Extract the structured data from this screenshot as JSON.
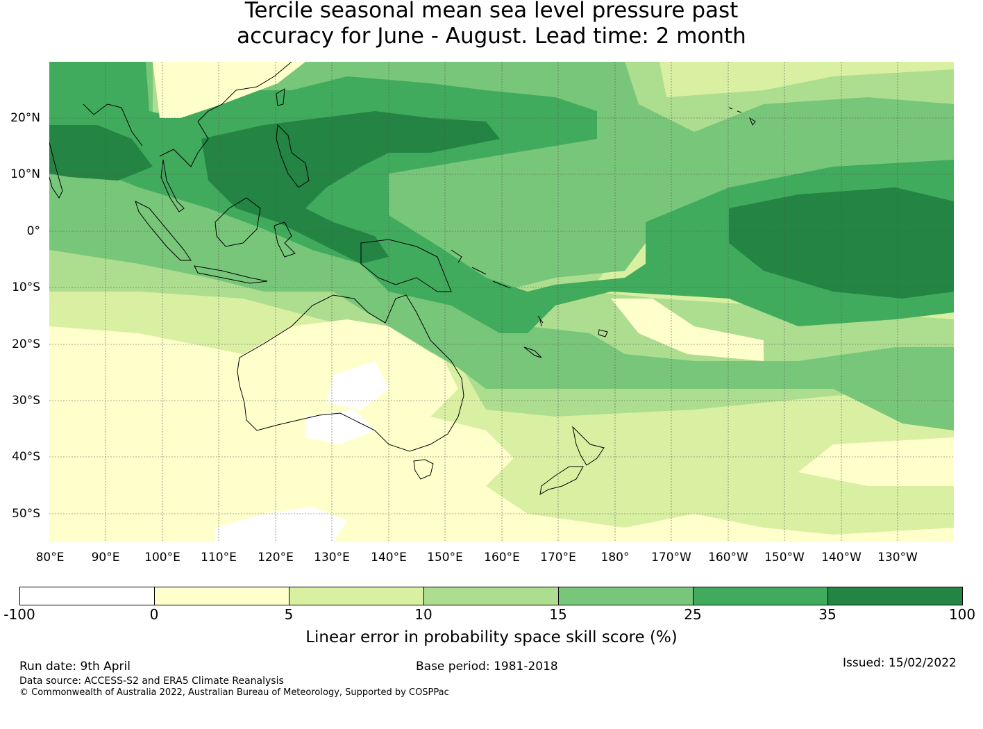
{
  "title": {
    "line1": "Tercile seasonal mean sea level pressure past",
    "line2": "accuracy for June - August. Lead time: 2 month"
  },
  "map": {
    "lat_labels": [
      "20°N",
      "10°N",
      "0°",
      "10°S",
      "20°S",
      "30°S",
      "40°S",
      "50°S"
    ],
    "lon_labels": [
      "80°E",
      "90°E",
      "100°E",
      "110°E",
      "120°E",
      "130°E",
      "140°E",
      "150°E",
      "160°E",
      "170°E",
      "180°",
      "170°W",
      "160°W",
      "150°W",
      "140°W",
      "130°W"
    ]
  },
  "colorbar": {
    "colors": [
      "#ffffff",
      "#ffffcc",
      "#d9f0a3",
      "#addd8e",
      "#78c679",
      "#41ab5d",
      "#238443"
    ],
    "ticks": [
      "-100",
      "0",
      "5",
      "10",
      "15",
      "25",
      "35",
      "100"
    ],
    "label": "Linear error in probability space skill score (%)"
  },
  "footer": {
    "run_date": "Run date: 9th April",
    "base_period": "Base period: 1981-2018",
    "issued": "Issued: 15/02/2022",
    "data_source": "Data source: ACCESS-S2 and ERA5 Climate Reanalysis",
    "copyright": "© Commonwealth of Australia 2022, Australian Bureau of Meteorology, Supported by COSPPac"
  }
}
